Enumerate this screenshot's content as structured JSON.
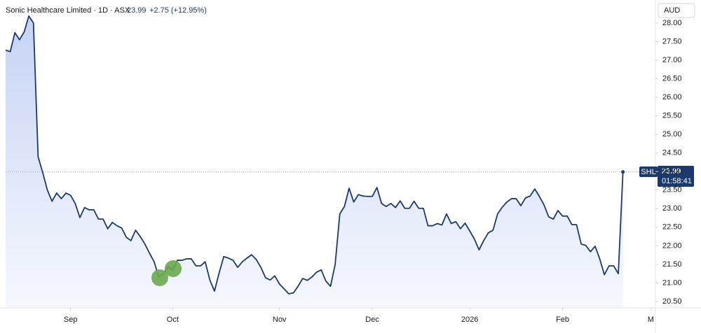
{
  "header": {
    "name": "Sonic Healthcare Limited · 1D · ASX",
    "price": "23.99",
    "change": "+2.75 (+12.95%)"
  },
  "currency": "AUD",
  "price_tag": {
    "symbol": "SHL",
    "price": "23.99",
    "countdown": "01:58:41"
  },
  "chart_data": {
    "type": "area",
    "series": [
      {
        "name": "SHL",
        "color": "#1b3a6b",
        "values": [
          27.27,
          27.23,
          27.74,
          27.55,
          27.76,
          28.19,
          28.0,
          24.4,
          23.97,
          23.5,
          23.2,
          23.42,
          23.27,
          23.42,
          23.36,
          23.14,
          22.76,
          23.03,
          22.97,
          22.97,
          22.72,
          22.72,
          22.46,
          22.63,
          22.54,
          22.48,
          22.23,
          22.14,
          22.42,
          22.25,
          22.05,
          21.8,
          21.57,
          21.16,
          21.25,
          21.44,
          21.35,
          21.61,
          21.61,
          21.65,
          21.65,
          21.46,
          21.46,
          21.57,
          21.08,
          20.78,
          21.27,
          21.71,
          21.67,
          21.61,
          21.42,
          21.57,
          21.67,
          21.76,
          21.63,
          21.42,
          21.14,
          21.08,
          21.19,
          20.97,
          20.84,
          20.71,
          20.73,
          20.91,
          21.12,
          21.07,
          21.16,
          21.29,
          21.35,
          21.05,
          20.91,
          21.5,
          22.86,
          23.06,
          23.55,
          23.18,
          23.38,
          23.34,
          23.33,
          23.33,
          23.57,
          23.14,
          23.06,
          23.14,
          23.03,
          23.21,
          23.01,
          23.01,
          23.2,
          23.01,
          23.01,
          22.54,
          22.54,
          22.6,
          22.56,
          22.86,
          22.6,
          22.65,
          22.46,
          22.61,
          22.4,
          22.18,
          21.89,
          22.14,
          22.35,
          22.42,
          22.86,
          23.04,
          23.18,
          23.27,
          23.27,
          23.08,
          23.29,
          23.34,
          23.53,
          23.33,
          23.1,
          22.78,
          22.72,
          22.95,
          22.8,
          22.8,
          22.57,
          22.57,
          22.05,
          22.01,
          21.84,
          21.99,
          21.65,
          21.22,
          21.46,
          21.46,
          21.25,
          23.99
        ]
      }
    ],
    "xlim": [
      0,
      140
    ],
    "xticks": [
      {
        "value": 14,
        "label": "Sep"
      },
      {
        "value": 36,
        "label": "Oct"
      },
      {
        "value": 59,
        "label": "Nov"
      },
      {
        "value": 79,
        "label": "Dec"
      },
      {
        "value": 100,
        "label": "2026"
      },
      {
        "value": 120,
        "label": "Feb"
      },
      {
        "value": 139,
        "label": "M"
      }
    ],
    "ylim": [
      20.33,
      28.62
    ],
    "yticks": [
      {
        "value": 20.5,
        "label": "20.50"
      },
      {
        "value": 21,
        "label": "21.00"
      },
      {
        "value": 21.5,
        "label": "21.50"
      },
      {
        "value": 22,
        "label": "22.00"
      },
      {
        "value": 22.5,
        "label": "22.50"
      },
      {
        "value": 23,
        "label": "23.00"
      },
      {
        "value": 23.5,
        "label": "23.50"
      },
      {
        "value": 24,
        "label": "24.00"
      },
      {
        "value": 24.5,
        "label": "24.50"
      },
      {
        "value": 25,
        "label": "25.00"
      },
      {
        "value": 25.5,
        "label": "25.50"
      },
      {
        "value": 26,
        "label": "26.00"
      },
      {
        "value": 26.5,
        "label": "26.50"
      },
      {
        "value": 27,
        "label": "27.00"
      },
      {
        "value": 27.5,
        "label": "27.50"
      },
      {
        "value": 28,
        "label": "28.00"
      }
    ],
    "grid": false
  }
}
